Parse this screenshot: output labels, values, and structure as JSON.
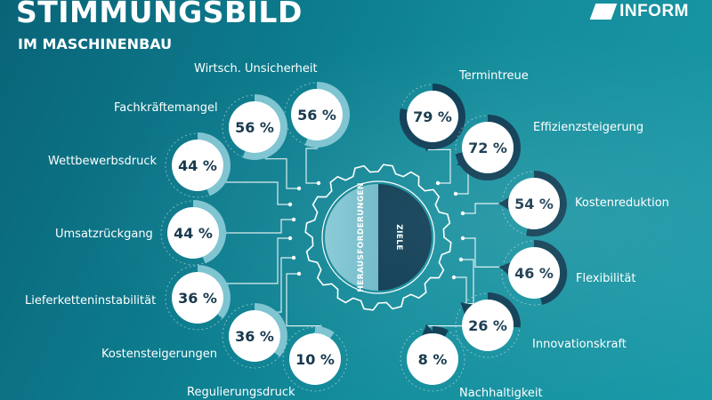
{
  "header": {
    "title": "STIMMUNGSBILD",
    "subtitle": "IM MASCHINENBAU",
    "logo_text": "INFORM"
  },
  "hub": {
    "left_label": "HERAUSFORDERUNGEN",
    "right_label": "ZIELE"
  },
  "colors": {
    "challenge_accent": "#7cc3d0",
    "goal_accent": "#0b3a52",
    "bubble_fill": "#ffffff",
    "text_dark": "#13354a"
  },
  "challenges": [
    {
      "label": "Wirtsch. Unsicherheit",
      "percent": 56,
      "value_text": "56 %"
    },
    {
      "label": "Fachkräftemangel",
      "percent": 56,
      "value_text": "56 %"
    },
    {
      "label": "Wettbewerbsdruck",
      "percent": 44,
      "value_text": "44 %"
    },
    {
      "label": "Umsatzrückgang",
      "percent": 44,
      "value_text": "44 %"
    },
    {
      "label": "Lieferketteninstabilität",
      "percent": 36,
      "value_text": "36 %"
    },
    {
      "label": "Kostensteigerungen",
      "percent": 36,
      "value_text": "36 %"
    },
    {
      "label": "Regulierungsdruck",
      "percent": 10,
      "value_text": "10 %"
    }
  ],
  "goals": [
    {
      "label": "Termintreue",
      "percent": 79,
      "value_text": "79 %"
    },
    {
      "label": "Effizienzsteigerung",
      "percent": 72,
      "value_text": "72 %"
    },
    {
      "label": "Kostenreduktion",
      "percent": 54,
      "value_text": "54 %"
    },
    {
      "label": "Flexibilität",
      "percent": 46,
      "value_text": "46 %"
    },
    {
      "label": "Innovationskraft",
      "percent": 26,
      "value_text": "26 %"
    },
    {
      "label": "Nachhaltigkeit",
      "percent": 8,
      "value_text": "8 %"
    }
  ]
}
